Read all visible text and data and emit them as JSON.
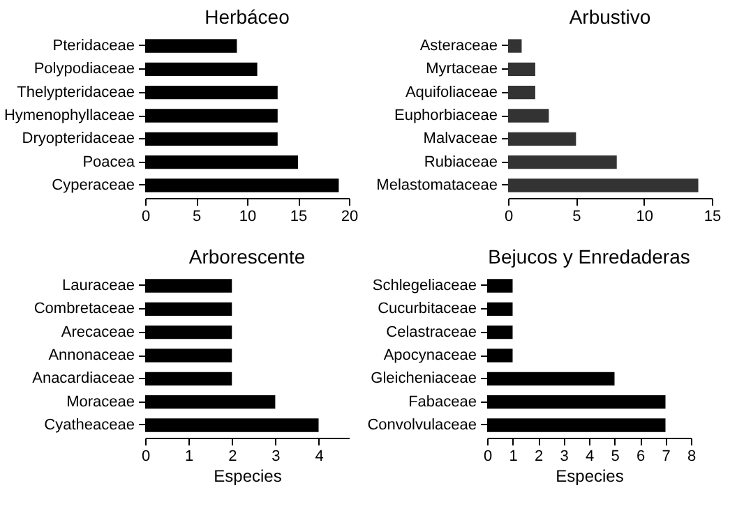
{
  "chart_data": [
    {
      "type": "bar",
      "orientation": "horizontal",
      "title": "Herbáceo",
      "categories": [
        "Pteridaceae",
        "Polypodiaceae",
        "Thelypteridaceae",
        "Hymenophyllaceae",
        "Dryopteridaceae",
        "Poacea",
        "Cyperaceae"
      ],
      "values": [
        9,
        11,
        13,
        13,
        13,
        15,
        19
      ],
      "color": "#000000",
      "xlim": [
        0,
        20
      ],
      "xticks": [
        0,
        5,
        10,
        15,
        20
      ],
      "grid": false
    },
    {
      "type": "bar",
      "orientation": "horizontal",
      "title": "Arbustivo",
      "categories": [
        "Asteraceae",
        "Myrtaceae",
        "Aquifoliaceae",
        "Euphorbiaceae",
        "Malvaceae",
        "Rubiaceae",
        "Melastomataceae"
      ],
      "values": [
        1,
        2,
        2,
        3,
        5,
        8,
        14
      ],
      "color": "#333333",
      "xlim": [
        0,
        15
      ],
      "xticks": [
        0,
        5,
        10,
        15
      ],
      "grid": false
    },
    {
      "type": "bar",
      "orientation": "horizontal",
      "title": "Arborescente",
      "xlabel": "Especies",
      "categories": [
        "Lauraceae",
        "Combretaceae",
        "Arecaceae",
        "Annonaceae",
        "Anacardiaceae",
        "Moraceae",
        "Cyatheaceae"
      ],
      "values": [
        2,
        2,
        2,
        2,
        2,
        3,
        4
      ],
      "color": "#000000",
      "xlim": [
        0,
        4.7
      ],
      "xticks": [
        0,
        1,
        2,
        3,
        4
      ],
      "grid": false
    },
    {
      "type": "bar",
      "orientation": "horizontal",
      "title": "Bejucos y Enredaderas",
      "xlabel": "Especies",
      "categories": [
        "Schlegeliaceae",
        "Cucurbitaceae",
        "Celastraceae",
        "Apocynaceae",
        "Gleicheniaceae",
        "Fabaceae",
        "Convolvulaceae"
      ],
      "values": [
        1,
        1,
        1,
        1,
        5,
        7,
        7
      ],
      "color": "#000000",
      "xlim": [
        0,
        8
      ],
      "xticks": [
        0,
        1,
        2,
        3,
        4,
        5,
        6,
        7,
        8
      ],
      "grid": false
    }
  ]
}
